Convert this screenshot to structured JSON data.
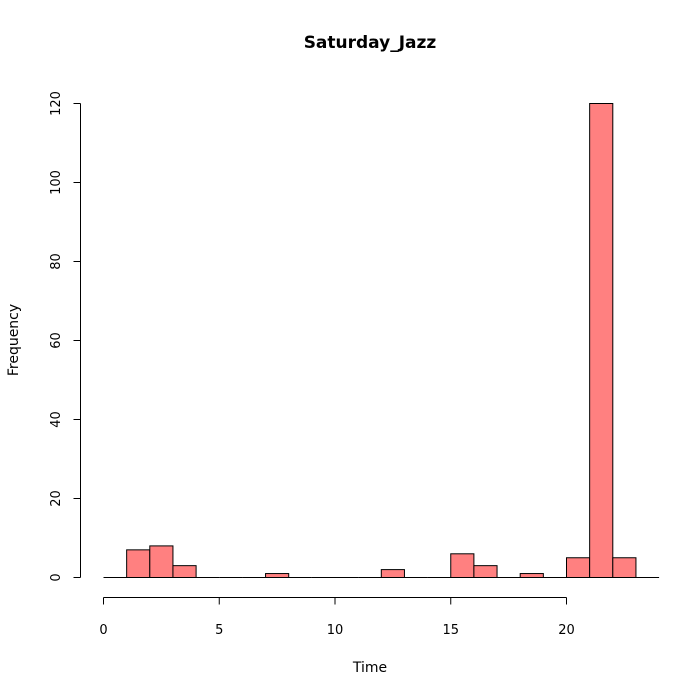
{
  "chart_data": {
    "type": "bar",
    "title": "Saturday_Jazz",
    "xlabel": "Time",
    "ylabel": "Frequency",
    "bin_width": 1,
    "bins": [
      {
        "x0": 0,
        "x1": 1,
        "count": 0
      },
      {
        "x0": 1,
        "x1": 2,
        "count": 7
      },
      {
        "x0": 2,
        "x1": 3,
        "count": 8
      },
      {
        "x0": 3,
        "x1": 4,
        "count": 3
      },
      {
        "x0": 4,
        "x1": 5,
        "count": 0
      },
      {
        "x0": 5,
        "x1": 6,
        "count": 0
      },
      {
        "x0": 6,
        "x1": 7,
        "count": 0
      },
      {
        "x0": 7,
        "x1": 8,
        "count": 1
      },
      {
        "x0": 8,
        "x1": 9,
        "count": 0
      },
      {
        "x0": 9,
        "x1": 10,
        "count": 0
      },
      {
        "x0": 10,
        "x1": 11,
        "count": 0
      },
      {
        "x0": 11,
        "x1": 12,
        "count": 0
      },
      {
        "x0": 12,
        "x1": 13,
        "count": 2
      },
      {
        "x0": 13,
        "x1": 14,
        "count": 0
      },
      {
        "x0": 14,
        "x1": 15,
        "count": 0
      },
      {
        "x0": 15,
        "x1": 16,
        "count": 6
      },
      {
        "x0": 16,
        "x1": 17,
        "count": 3
      },
      {
        "x0": 17,
        "x1": 18,
        "count": 0
      },
      {
        "x0": 18,
        "x1": 19,
        "count": 1
      },
      {
        "x0": 19,
        "x1": 20,
        "count": 0
      },
      {
        "x0": 20,
        "x1": 21,
        "count": 5
      },
      {
        "x0": 21,
        "x1": 22,
        "count": 120
      },
      {
        "x0": 22,
        "x1": 23,
        "count": 5
      },
      {
        "x0": 23,
        "x1": 24,
        "count": 0
      }
    ],
    "x_ticks": [
      0,
      5,
      10,
      15,
      20
    ],
    "y_ticks": [
      0,
      20,
      40,
      60,
      80,
      100,
      120
    ],
    "xlim": [
      0,
      24
    ],
    "ylim": [
      0,
      120
    ],
    "bar_color": "#ff8080",
    "grid": false
  }
}
